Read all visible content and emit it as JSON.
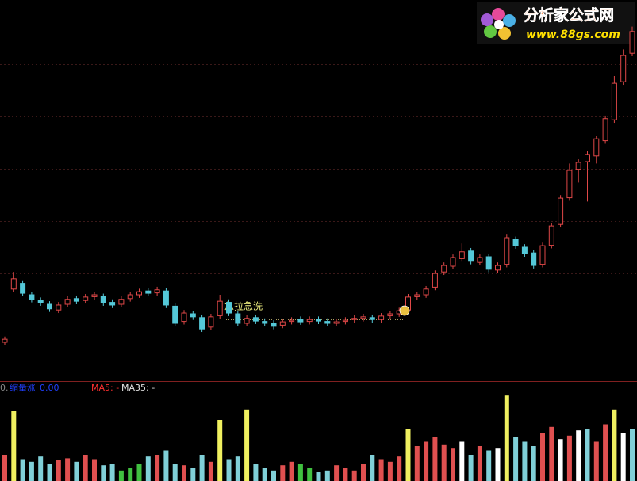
{
  "logo": {
    "name": "分析家公式网",
    "url": "www.88gs.com"
  },
  "chart_data": {
    "type": "candlestick",
    "ylim": [
      0,
      100
    ],
    "grid_levels": [
      83.1,
      69.4,
      55.6,
      41.9,
      28.1,
      14.4
    ],
    "up_color": "#e04848",
    "down_color": "#54c8d8",
    "open": [
      10.0,
      24.0,
      25.5,
      22.5,
      21.0,
      20.0,
      18.5,
      20.0,
      21.5,
      21.0,
      22.0,
      22.0,
      20.5,
      20.0,
      21.5,
      22.5,
      23.5,
      23.0,
      23.5,
      19.5,
      15.5,
      17.5,
      16.5,
      14.0,
      17.0,
      20.5,
      17.5,
      15.0,
      16.5,
      15.5,
      15.0,
      14.5,
      15.5,
      16.0,
      15.5,
      16.0,
      15.5,
      15.0,
      15.5,
      16.0,
      16.3,
      16.5,
      16.0,
      17.0,
      17.5,
      18.5,
      22.0,
      22.5,
      24.5,
      28.5,
      30.0,
      32.0,
      34.0,
      31.0,
      32.5,
      29.0,
      30.5,
      37.0,
      35.0,
      33.5,
      30.5,
      35.5,
      41.0,
      48.0,
      55.5,
      57.5,
      59.0,
      63.0,
      68.5,
      78.5,
      86.0
    ],
    "high": [
      11.5,
      28.5,
      26.3,
      23.3,
      21.8,
      20.8,
      20.6,
      22.1,
      22.3,
      22.7,
      23.3,
      22.8,
      21.3,
      22.1,
      23.3,
      24.1,
      24.3,
      24.6,
      24.3,
      20.3,
      18.5,
      18.3,
      17.3,
      17.5,
      22.5,
      21.3,
      18.3,
      17.1,
      17.3,
      16.3,
      15.8,
      16.2,
      16.6,
      16.8,
      16.8,
      16.8,
      16.3,
      16.2,
      16.6,
      17.1,
      17.5,
      17.3,
      17.7,
      18.3,
      19.1,
      22.7,
      23.3,
      24.8,
      28.9,
      31.0,
      33.1,
      36.0,
      34.8,
      33.1,
      33.3,
      31.0,
      38.5,
      37.8,
      35.8,
      34.3,
      36.2,
      41.4,
      48.7,
      57.0,
      58.1,
      60.2,
      64.3,
      69.6,
      80.0,
      87.0,
      93.0
    ],
    "low": [
      9.3,
      23.2,
      22.1,
      20.5,
      19.6,
      18.0,
      17.7,
      19.2,
      20.0,
      20.2,
      21.2,
      19.6,
      19.0,
      19.2,
      20.7,
      21.7,
      22.1,
      22.2,
      19.0,
      14.2,
      14.7,
      15.9,
      12.7,
      13.2,
      16.2,
      16.9,
      14.2,
      14.2,
      14.8,
      14.2,
      13.4,
      13.7,
      14.7,
      14.6,
      14.7,
      14.8,
      14.2,
      14.2,
      14.7,
      15.2,
      15.5,
      15.2,
      15.2,
      16.2,
      16.7,
      17.7,
      21.2,
      21.7,
      23.7,
      27.7,
      29.2,
      31.2,
      30.5,
      30.2,
      28.4,
      28.2,
      29.7,
      34.6,
      32.5,
      29.4,
      29.7,
      34.7,
      40.2,
      47.2,
      52.0,
      47.0,
      57.0,
      62.2,
      67.7,
      77.7,
      85.2
    ],
    "close": [
      10.8,
      26.7,
      22.9,
      21.3,
      20.4,
      18.8,
      19.8,
      21.3,
      20.8,
      21.9,
      22.5,
      20.4,
      19.8,
      21.3,
      22.5,
      23.3,
      22.9,
      23.8,
      19.8,
      15.0,
      17.7,
      16.7,
      13.5,
      16.7,
      20.8,
      17.7,
      15.0,
      16.3,
      15.6,
      15.0,
      14.2,
      15.4,
      15.8,
      15.4,
      16.0,
      15.6,
      15.0,
      15.4,
      15.8,
      16.3,
      16.7,
      16.0,
      16.9,
      17.5,
      18.3,
      21.9,
      22.5,
      24.0,
      28.1,
      30.2,
      32.3,
      33.8,
      31.3,
      32.3,
      29.2,
      30.2,
      37.5,
      35.4,
      33.3,
      30.2,
      35.4,
      40.6,
      47.9,
      55.2,
      57.3,
      59.4,
      63.5,
      68.8,
      78.1,
      85.4,
      91.7
    ],
    "annotation": "急拉急洗",
    "support_level": 16.0,
    "volume": {
      "type": "bar",
      "ylim": [
        0,
        100
      ],
      "values": [
        30,
        80,
        25,
        22,
        28,
        20,
        24,
        26,
        22,
        30,
        25,
        18,
        20,
        12,
        15,
        20,
        28,
        30,
        35,
        20,
        18,
        15,
        30,
        22,
        70,
        25,
        28,
        82,
        20,
        15,
        12,
        18,
        22,
        20,
        15,
        10,
        12,
        18,
        15,
        12,
        20,
        30,
        25,
        22,
        28,
        60,
        40,
        45,
        50,
        42,
        38,
        45,
        30,
        40,
        35,
        38,
        98,
        50,
        45,
        40,
        55,
        62,
        48,
        52,
        58,
        60,
        45,
        65,
        82,
        55,
        60
      ],
      "colors": [
        "#e05050",
        "#f0f060",
        "#80d0d8",
        "#80d0d8",
        "#80d0d8",
        "#80d0d8",
        "#e05050",
        "#e05050",
        "#80d0d8",
        "#e05050",
        "#e05050",
        "#80d0d8",
        "#80d0d8",
        "#40c040",
        "#40c040",
        "#40c040",
        "#80d0d8",
        "#e05050",
        "#80d0d8",
        "#80d0d8",
        "#e05050",
        "#80d0d8",
        "#80d0d8",
        "#e05050",
        "#f0f060",
        "#80d0d8",
        "#80d0d8",
        "#f0f060",
        "#80d0d8",
        "#80d0d8",
        "#80d0d8",
        "#e05050",
        "#e05050",
        "#40c040",
        "#40c040",
        "#80d0d8",
        "#80d0d8",
        "#e05050",
        "#e05050",
        "#e05050",
        "#e05050",
        "#80d0d8",
        "#e05050",
        "#e05050",
        "#e05050",
        "#f0f060",
        "#e05050",
        "#e05050",
        "#e05050",
        "#e05050",
        "#e05050",
        "#ffffff",
        "#80d0d8",
        "#e05050",
        "#80d0d8",
        "#ffffff",
        "#f0f060",
        "#80d0d8",
        "#80d0d8",
        "#80d0d8",
        "#e05050",
        "#e05050",
        "#ffffff",
        "#e05050",
        "#ffffff",
        "#80d0d8",
        "#e05050",
        "#e05050",
        "#f0f060",
        "#ffffff",
        "#80d0d8"
      ]
    },
    "legend": {
      "prefix": "0.",
      "indicator": "缩量涨",
      "indicator_value": "0.00",
      "ma5": "MA5: -",
      "ma35": "MA35: -"
    }
  }
}
